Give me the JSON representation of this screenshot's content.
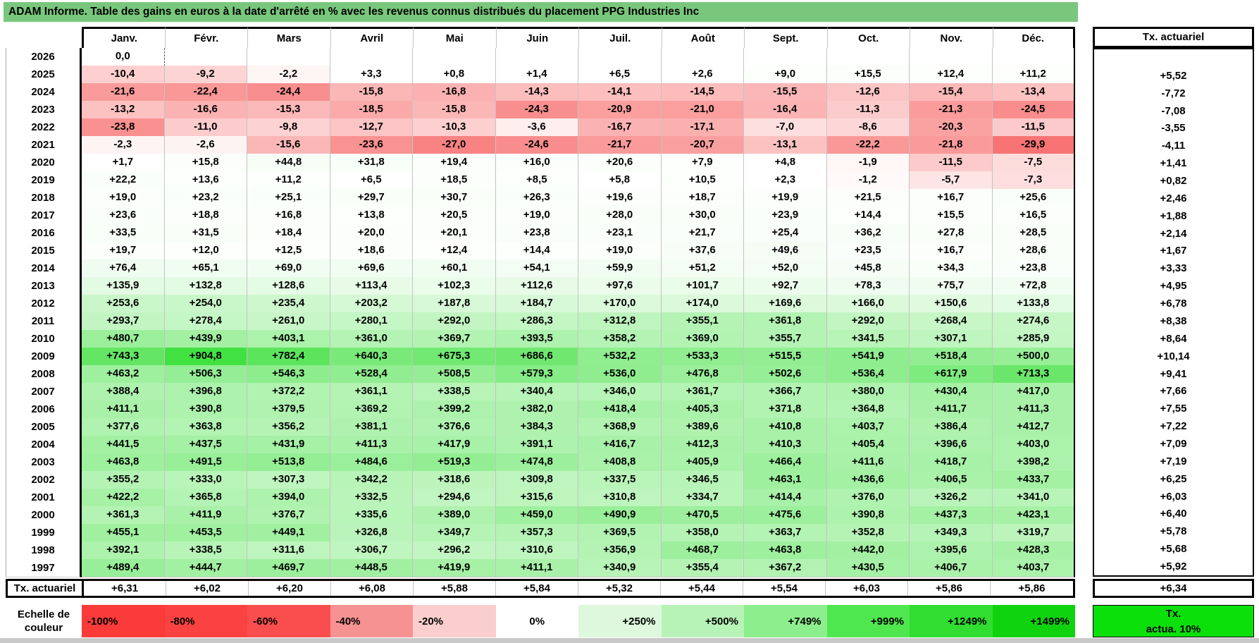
{
  "title": "ADAM Informe. Table des gains en euros à la date d'arrêté en % avec les revenus connus distribués du placement PPG Industries Inc",
  "colors": {
    "title_bg": "#79c77c",
    "page_bg": "#ffffff",
    "grid_line": "#c3c3c3",
    "negative_full": "#f87474",
    "positive_full": "#42e142",
    "negative_cap": 30,
    "positive_cap": 905,
    "bottom_strip": "#c9c9c9"
  },
  "chart_data": {
    "type": "heatmap",
    "title": "ADAM Informe. Table des gains en euros à la date d'arrêté en % avec les revenus connus distribués du placement PPG Industries Inc",
    "columns": [
      "Janv.",
      "Févr.",
      "Mars",
      "Avril",
      "Mai",
      "Juin",
      "Juil.",
      "Août",
      "Sept.",
      "Oct.",
      "Nov.",
      "Déc."
    ],
    "tx_column_header": "Tx. actuariel",
    "rows": [
      {
        "year": "2026",
        "values": [
          "0,0",
          "",
          "",
          "",
          "",
          "",
          "",
          "",
          "",
          "",
          "",
          ""
        ],
        "tx": "",
        "dashed_after_first": true
      },
      {
        "year": "2025",
        "values": [
          "-10,4",
          "-9,2",
          "-2,2",
          "+3,3",
          "+0,8",
          "+1,4",
          "+6,5",
          "+2,6",
          "+9,0",
          "+15,5",
          "+12,4",
          "+11,2"
        ],
        "tx": "+5,52"
      },
      {
        "year": "2024",
        "values": [
          "-21,6",
          "-22,4",
          "-24,4",
          "-15,8",
          "-16,8",
          "-14,3",
          "-14,1",
          "-14,5",
          "-15,5",
          "-12,6",
          "-15,4",
          "-13,4"
        ],
        "tx": "-7,72"
      },
      {
        "year": "2023",
        "values": [
          "-13,2",
          "-16,6",
          "-15,3",
          "-18,5",
          "-15,8",
          "-24,3",
          "-20,9",
          "-21,0",
          "-16,4",
          "-11,3",
          "-21,3",
          "-24,5"
        ],
        "tx": "-7,08"
      },
      {
        "year": "2022",
        "values": [
          "-23,8",
          "-11,0",
          "-9,8",
          "-12,7",
          "-10,3",
          "-3,6",
          "-16,7",
          "-17,1",
          "-7,0",
          "-8,6",
          "-20,3",
          "-11,5"
        ],
        "tx": "-3,55"
      },
      {
        "year": "2021",
        "values": [
          "-2,3",
          "-2,6",
          "-15,6",
          "-23,6",
          "-27,0",
          "-24,6",
          "-21,7",
          "-20,7",
          "-13,1",
          "-22,2",
          "-21,8",
          "-29,9"
        ],
        "tx": "-4,11"
      },
      {
        "year": "2020",
        "values": [
          "+1,7",
          "+15,8",
          "+44,8",
          "+31,8",
          "+19,4",
          "+16,0",
          "+20,6",
          "+7,9",
          "+4,8",
          "-1,9",
          "-11,5",
          "-7,5"
        ],
        "tx": "+1,41"
      },
      {
        "year": "2019",
        "values": [
          "+22,2",
          "+13,6",
          "+11,2",
          "+6,5",
          "+18,5",
          "+8,5",
          "+5,8",
          "+10,5",
          "+2,3",
          "-1,2",
          "-5,7",
          "-7,3"
        ],
        "tx": "+0,82"
      },
      {
        "year": "2018",
        "values": [
          "+19,0",
          "+23,2",
          "+25,1",
          "+29,7",
          "+30,7",
          "+26,3",
          "+19,6",
          "+18,7",
          "+19,9",
          "+21,5",
          "+16,7",
          "+25,6"
        ],
        "tx": "+2,46"
      },
      {
        "year": "2017",
        "values": [
          "+23,6",
          "+18,8",
          "+16,8",
          "+13,8",
          "+20,5",
          "+19,0",
          "+28,0",
          "+30,0",
          "+23,9",
          "+14,4",
          "+15,5",
          "+16,5"
        ],
        "tx": "+1,88"
      },
      {
        "year": "2016",
        "values": [
          "+33,5",
          "+31,5",
          "+18,4",
          "+20,0",
          "+20,1",
          "+23,8",
          "+23,1",
          "+21,7",
          "+25,4",
          "+36,2",
          "+27,8",
          "+28,5"
        ],
        "tx": "+2,14"
      },
      {
        "year": "2015",
        "values": [
          "+19,7",
          "+12,0",
          "+12,5",
          "+18,6",
          "+12,4",
          "+14,4",
          "+19,0",
          "+37,6",
          "+49,6",
          "+23,5",
          "+16,7",
          "+28,6"
        ],
        "tx": "+1,67"
      },
      {
        "year": "2014",
        "values": [
          "+76,4",
          "+65,1",
          "+69,0",
          "+69,6",
          "+60,1",
          "+54,1",
          "+59,9",
          "+51,2",
          "+52,0",
          "+45,8",
          "+34,3",
          "+23,8"
        ],
        "tx": "+3,33"
      },
      {
        "year": "2013",
        "values": [
          "+135,9",
          "+132,8",
          "+128,6",
          "+113,4",
          "+102,3",
          "+112,6",
          "+97,6",
          "+101,7",
          "+92,7",
          "+78,3",
          "+75,7",
          "+72,8"
        ],
        "tx": "+4,95"
      },
      {
        "year": "2012",
        "values": [
          "+253,6",
          "+254,0",
          "+235,4",
          "+203,2",
          "+187,8",
          "+184,7",
          "+170,0",
          "+174,0",
          "+169,6",
          "+166,0",
          "+150,6",
          "+133,8"
        ],
        "tx": "+6,78"
      },
      {
        "year": "2011",
        "values": [
          "+293,7",
          "+278,4",
          "+261,0",
          "+280,1",
          "+292,0",
          "+286,3",
          "+312,8",
          "+355,1",
          "+361,8",
          "+292,0",
          "+268,4",
          "+274,6"
        ],
        "tx": "+8,38"
      },
      {
        "year": "2010",
        "values": [
          "+480,7",
          "+439,9",
          "+403,1",
          "+361,0",
          "+369,7",
          "+393,5",
          "+358,2",
          "+369,0",
          "+355,7",
          "+341,5",
          "+307,1",
          "+285,9"
        ],
        "tx": "+8,64"
      },
      {
        "year": "2009",
        "values": [
          "+743,3",
          "+904,8",
          "+782,4",
          "+640,3",
          "+675,3",
          "+686,6",
          "+532,2",
          "+533,3",
          "+515,5",
          "+541,9",
          "+518,4",
          "+500,0"
        ],
        "tx": "+10,14"
      },
      {
        "year": "2008",
        "values": [
          "+463,2",
          "+506,3",
          "+546,3",
          "+528,4",
          "+508,5",
          "+579,3",
          "+536,0",
          "+476,8",
          "+502,6",
          "+536,4",
          "+617,9",
          "+713,3"
        ],
        "tx": "+9,41"
      },
      {
        "year": "2007",
        "values": [
          "+388,4",
          "+396,8",
          "+372,2",
          "+361,1",
          "+338,5",
          "+340,4",
          "+346,0",
          "+361,7",
          "+366,7",
          "+380,0",
          "+430,4",
          "+417,0"
        ],
        "tx": "+7,66"
      },
      {
        "year": "2006",
        "values": [
          "+411,1",
          "+390,8",
          "+379,5",
          "+369,2",
          "+399,2",
          "+382,0",
          "+418,4",
          "+405,3",
          "+371,8",
          "+364,8",
          "+411,7",
          "+411,3"
        ],
        "tx": "+7,55"
      },
      {
        "year": "2005",
        "values": [
          "+377,6",
          "+363,8",
          "+356,2",
          "+381,1",
          "+376,6",
          "+384,3",
          "+368,9",
          "+389,6",
          "+410,8",
          "+403,7",
          "+386,4",
          "+412,7"
        ],
        "tx": "+7,22"
      },
      {
        "year": "2004",
        "values": [
          "+441,5",
          "+437,5",
          "+431,9",
          "+411,3",
          "+417,9",
          "+391,1",
          "+416,7",
          "+412,3",
          "+410,3",
          "+405,4",
          "+396,6",
          "+403,0"
        ],
        "tx": "+7,09"
      },
      {
        "year": "2003",
        "values": [
          "+463,8",
          "+491,5",
          "+513,8",
          "+484,6",
          "+519,3",
          "+474,8",
          "+408,8",
          "+405,9",
          "+466,4",
          "+411,6",
          "+418,7",
          "+398,2"
        ],
        "tx": "+7,19"
      },
      {
        "year": "2002",
        "values": [
          "+355,2",
          "+333,0",
          "+307,3",
          "+342,2",
          "+318,6",
          "+309,8",
          "+337,5",
          "+346,5",
          "+463,1",
          "+436,6",
          "+406,5",
          "+433,7"
        ],
        "tx": "+6,25"
      },
      {
        "year": "2001",
        "values": [
          "+422,2",
          "+365,8",
          "+394,0",
          "+332,5",
          "+294,6",
          "+315,6",
          "+310,8",
          "+334,7",
          "+414,4",
          "+376,0",
          "+326,2",
          "+341,0"
        ],
        "tx": "+6,03"
      },
      {
        "year": "2000",
        "values": [
          "+361,3",
          "+411,9",
          "+376,7",
          "+335,6",
          "+389,0",
          "+459,0",
          "+490,9",
          "+470,5",
          "+475,6",
          "+390,8",
          "+437,3",
          "+423,1"
        ],
        "tx": "+6,40"
      },
      {
        "year": "1999",
        "values": [
          "+455,1",
          "+453,5",
          "+449,1",
          "+326,8",
          "+349,7",
          "+357,3",
          "+369,5",
          "+358,0",
          "+363,7",
          "+352,8",
          "+349,3",
          "+319,7"
        ],
        "tx": "+5,78"
      },
      {
        "year": "1998",
        "values": [
          "+392,1",
          "+338,5",
          "+311,6",
          "+306,7",
          "+296,2",
          "+310,6",
          "+356,9",
          "+468,7",
          "+463,8",
          "+442,0",
          "+395,6",
          "+428,3"
        ],
        "tx": "+5,68"
      },
      {
        "year": "1997",
        "values": [
          "+489,4",
          "+444,7",
          "+469,7",
          "+448,5",
          "+419,9",
          "+411,1",
          "+340,9",
          "+355,4",
          "+367,2",
          "+430,5",
          "+406,7",
          "+403,7"
        ],
        "tx": "+5,92"
      }
    ],
    "footer_row": {
      "label": "Tx. actuariel",
      "values": [
        "+6,31",
        "+6,02",
        "+6,20",
        "+6,08",
        "+5,88",
        "+5,84",
        "+5,32",
        "+5,44",
        "+5,54",
        "+6,03",
        "+5,86",
        "+5,86"
      ],
      "tx": "+6,34"
    },
    "legend": {
      "label": "Echelle de couleur",
      "items": [
        {
          "label": "-100%",
          "color": "#fb3a3a"
        },
        {
          "label": "-80%",
          "color": "#fb4242"
        },
        {
          "label": "-60%",
          "color": "#fa4e4e"
        },
        {
          "label": "-40%",
          "color": "#f79292"
        },
        {
          "label": "-20%",
          "color": "#fbcece"
        },
        {
          "label": "0%",
          "color": "#ffffff"
        },
        {
          "label": "+250%",
          "color": "#ddf8dd"
        },
        {
          "label": "+500%",
          "color": "#b7f2b7"
        },
        {
          "label": "+749%",
          "color": "#8dee8d"
        },
        {
          "label": "+999%",
          "color": "#4fe74f"
        },
        {
          "label": "+1249%",
          "color": "#30dd30"
        },
        {
          "label": "+1499%",
          "color": "#0ed30e"
        }
      ],
      "tx_box": {
        "lines": [
          "Tx.",
          "actua. 10%"
        ],
        "color": "#0be00b"
      }
    }
  }
}
